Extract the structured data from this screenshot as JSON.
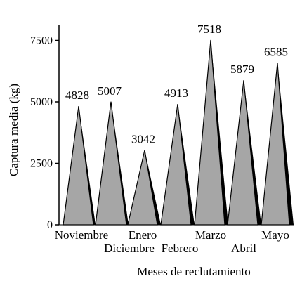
{
  "chart_data": {
    "type": "area",
    "title": "",
    "xlabel": "Meses de reclutamiento",
    "ylabel": "Captura media (kg)",
    "ylim": [
      0,
      8000
    ],
    "yticks": [
      0,
      2500,
      5000,
      7500
    ],
    "grid": false,
    "categories": [
      "Noviembre",
      "Diciembre",
      "Enero",
      "Febrero",
      "Marzo",
      "Abril",
      "Mayo"
    ],
    "values": [
      4828,
      5007,
      3042,
      4913,
      7518,
      5879,
      6585
    ],
    "data_labels": [
      "4828",
      "5007",
      "3042",
      "4913",
      "7518",
      "5879",
      "6585"
    ],
    "colors": {
      "fill": "#a6a6a6",
      "shadow": "#000000",
      "stroke": "#000000"
    }
  }
}
